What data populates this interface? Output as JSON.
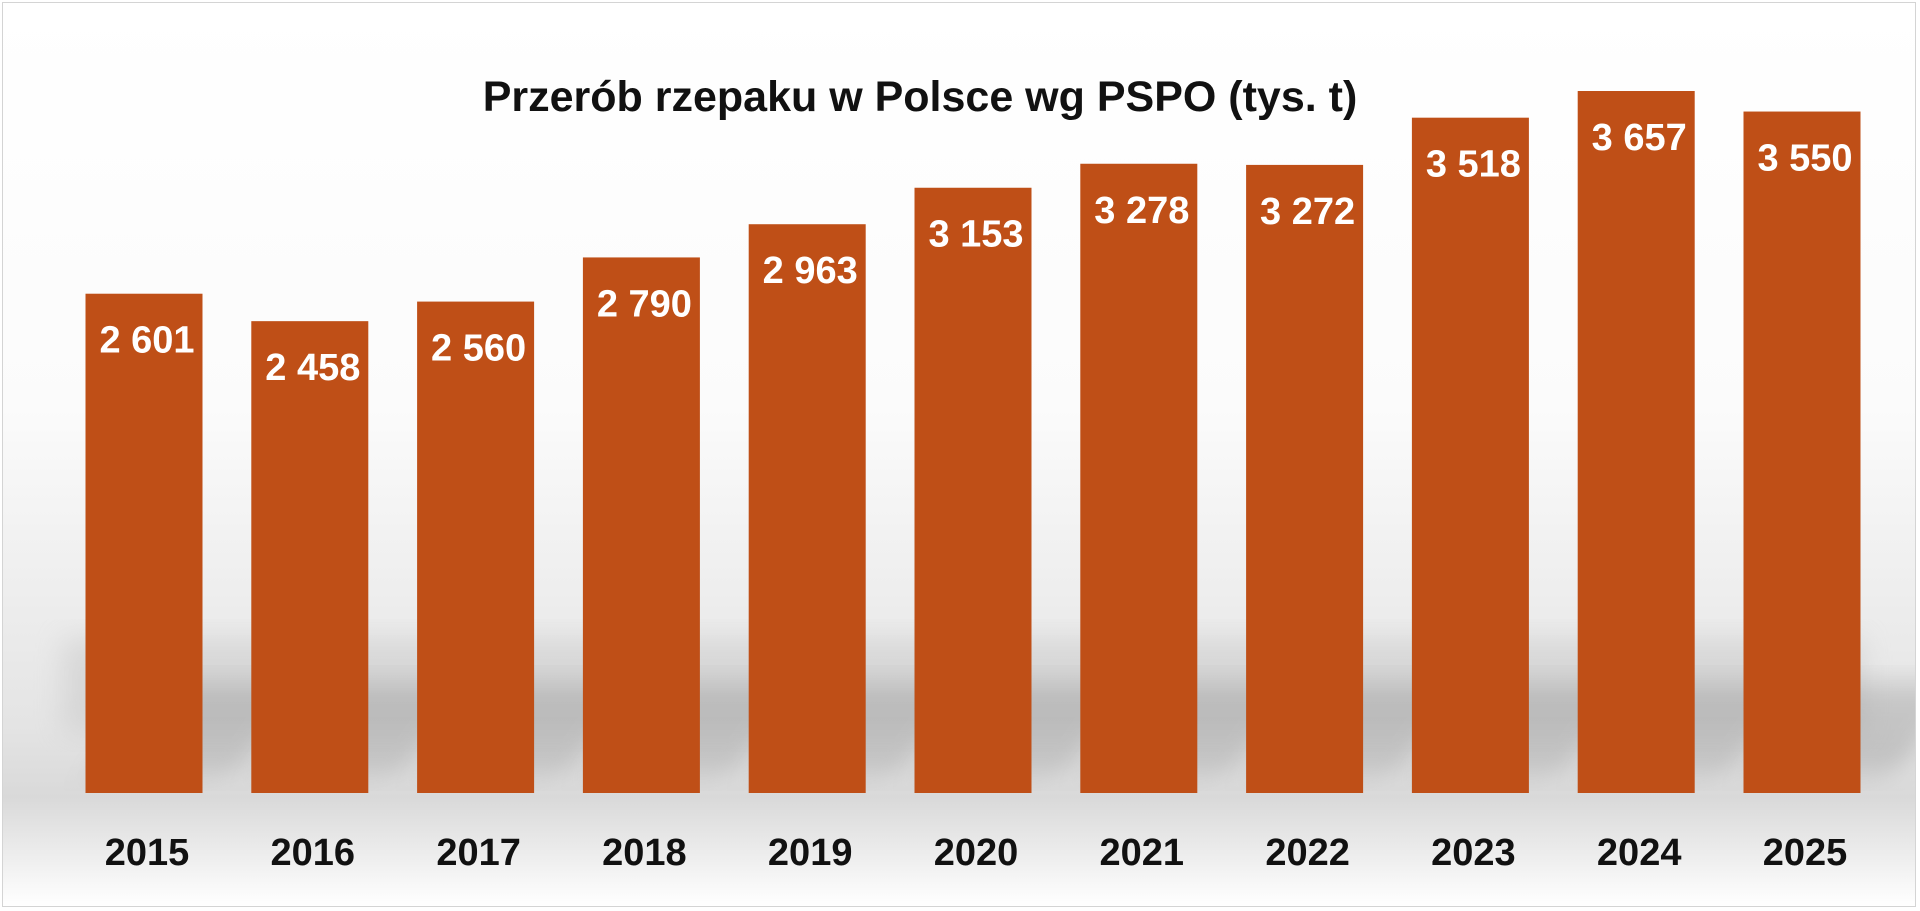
{
  "colors": {
    "bar": "#bf4f17",
    "label": "#ffffff",
    "text": "#111111",
    "background": "#ffffff"
  },
  "chart_data": {
    "type": "bar",
    "title": "Przerób rzepaku w Polsce wg PSPO (tys. t)",
    "xlabel": "",
    "ylabel": "",
    "categories": [
      "2015",
      "2016",
      "2017",
      "2018",
      "2019",
      "2020",
      "2021",
      "2022",
      "2023",
      "2024",
      "2025"
    ],
    "values": [
      2601,
      2458,
      2560,
      2790,
      2963,
      3153,
      3278,
      3272,
      3518,
      3657,
      3550
    ],
    "value_labels": [
      "2 601",
      "2 458",
      "2 560",
      "2 790",
      "2 963",
      "3 153",
      "3 278",
      "3 272",
      "3 518",
      "3 657",
      "3 550"
    ],
    "ylim": [
      0,
      3657
    ],
    "grid": false,
    "legend": "none"
  }
}
